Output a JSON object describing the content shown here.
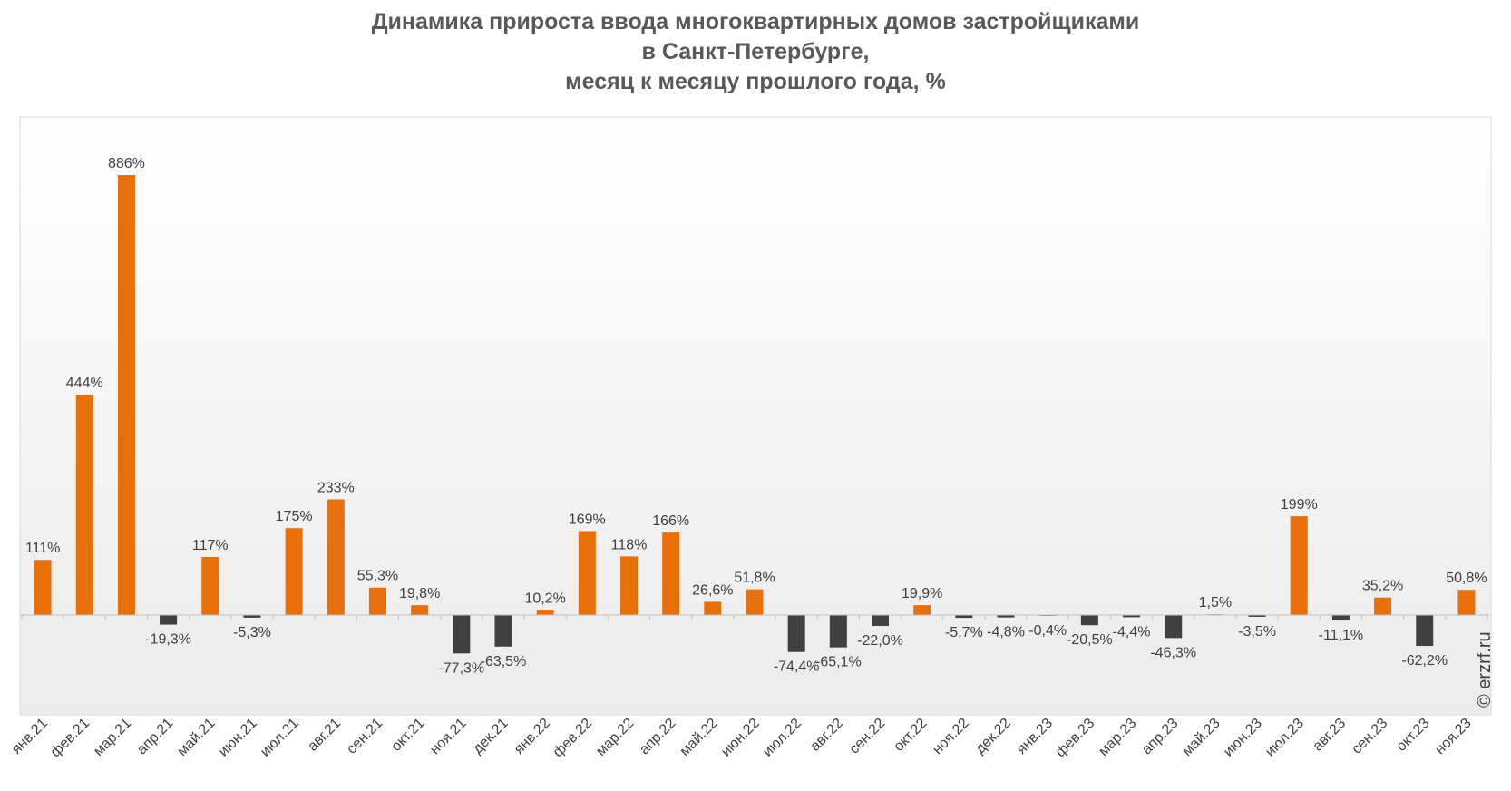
{
  "title_lines": [
    "Динамика прироста ввода многоквартирных домов застройщиками",
    "в Санкт-Петербурге,",
    "месяц к месяцу прошлого года, %"
  ],
  "copyright": "© erzrf.ru",
  "colors": {
    "positive": "#E8700A",
    "negative": "#404040",
    "plot_gradient_top": "#ffffff",
    "plot_gradient_bottom": "#ebebeb"
  },
  "chart_data": {
    "type": "bar",
    "title": "Динамика прироста ввода многоквартирных домов застройщиками в Санкт-Петербурге, месяц к месяцу прошлого года, %",
    "categories": [
      "янв.21",
      "фев.21",
      "мар.21",
      "апр.21",
      "май.21",
      "июн.21",
      "июл.21",
      "авг.21",
      "сен.21",
      "окт.21",
      "ноя.21",
      "дек.21",
      "янв.22",
      "фев.22",
      "мар.22",
      "апр.22",
      "май.22",
      "июн.22",
      "июл.22",
      "авг.22",
      "сен.22",
      "окт.22",
      "ноя.22",
      "дек.22",
      "янв.23",
      "фев.23",
      "мар.23",
      "апр.23",
      "май.23",
      "июн.23",
      "июл.23",
      "авг.23",
      "сен.23",
      "окт.23",
      "ноя.23"
    ],
    "values": [
      111,
      444,
      886,
      -19.3,
      117,
      -5.3,
      175,
      233,
      55.3,
      19.8,
      -77.3,
      -63.5,
      10.2,
      169,
      118,
      166,
      26.6,
      51.8,
      -74.4,
      -65.1,
      -22.0,
      19.9,
      -5.7,
      -4.8,
      -0.4,
      -20.5,
      -4.4,
      -46.3,
      1.5,
      -3.5,
      199,
      -11.1,
      35.2,
      -62.2,
      50.8
    ],
    "labels": [
      "111%",
      "444%",
      "886%",
      "-19,3%",
      "117%",
      "-5,3%",
      "175%",
      "233%",
      "55,3%",
      "19,8%",
      "-77,3%",
      "-63,5%",
      "10,2%",
      "169%",
      "118%",
      "166%",
      "26,6%",
      "51,8%",
      "-74,4%",
      "-65,1%",
      "-22,0%",
      "19,9%",
      "-5,7%",
      "-4,8%",
      "-0,4%",
      "-20,5%",
      "-4,4%",
      "-46,3%",
      "1,5%",
      "-3,5%",
      "199%",
      "-11,1%",
      "35,2%",
      "-62,2%",
      "50,8%"
    ],
    "xlabel": "",
    "ylabel": "",
    "ylim": [
      -200,
      1000
    ],
    "grid": false,
    "legend": "none"
  }
}
